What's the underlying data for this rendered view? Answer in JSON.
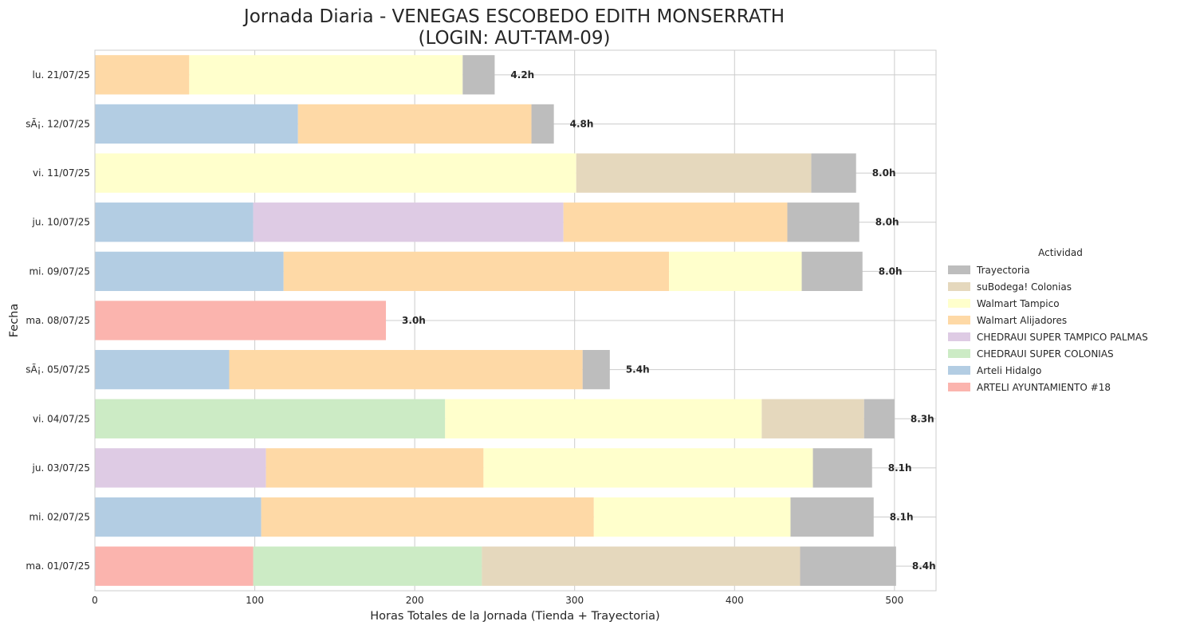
{
  "chart_data": {
    "type": "bar",
    "orientation": "horizontal",
    "stacked": true,
    "title_lines": [
      "Jornada Diaria - VENEGAS ESCOBEDO EDITH MONSERRATH",
      "(LOGIN: AUT-TAM-09)"
    ],
    "xlabel": "Horas Totales de la Jornada (Tienda + Trayectoria)",
    "ylabel": "Fecha",
    "xlim": [
      0,
      526
    ],
    "xticks": [
      0,
      100,
      200,
      300,
      400,
      500
    ],
    "grid": true,
    "legend_title": "Actividad",
    "legend_position": "right",
    "categories": [
      "lu. 21/07/25",
      "sÃ¡. 12/07/25",
      "vi. 11/07/25",
      "ju. 10/07/25",
      "mi. 09/07/25",
      "ma. 08/07/25",
      "sÃ¡. 05/07/25",
      "vi. 04/07/25",
      "ju. 03/07/25",
      "mi. 02/07/25",
      "ma. 01/07/25"
    ],
    "totals_labels": [
      "4.2h",
      "4.8h",
      "8.0h",
      "8.0h",
      "8.0h",
      "3.0h",
      "5.4h",
      "8.3h",
      "8.1h",
      "8.1h",
      "8.4h"
    ],
    "series": [
      {
        "name": "ARTELI AYUNTAMIENTO #18",
        "color": "#fbb4ae",
        "values": [
          0,
          0,
          0,
          0,
          0,
          182,
          0,
          0,
          0,
          0,
          99
        ]
      },
      {
        "name": "Arteli Hidalgo",
        "color": "#b3cde3",
        "values": [
          0,
          127,
          0,
          99,
          118,
          0,
          84,
          0,
          0,
          104,
          0
        ]
      },
      {
        "name": "CHEDRAUI SUPER COLONIAS",
        "color": "#ccebc5",
        "values": [
          0,
          0,
          0,
          0,
          0,
          0,
          0,
          219,
          0,
          0,
          143
        ]
      },
      {
        "name": "CHEDRAUI SUPER TAMPICO PALMAS",
        "color": "#decbe4",
        "values": [
          0,
          0,
          0,
          194,
          0,
          0,
          0,
          0,
          107,
          0,
          0
        ]
      },
      {
        "name": "Walmart Alijadores",
        "color": "#fed9a6",
        "values": [
          59,
          146,
          0,
          140,
          241,
          0,
          221,
          0,
          136,
          208,
          0
        ]
      },
      {
        "name": "Walmart Tampico",
        "color": "#ffffcc",
        "values": [
          171,
          0,
          301,
          0,
          83,
          0,
          0,
          198,
          206,
          123,
          0
        ]
      },
      {
        "name": "suBodega! Colonias",
        "color": "#e5d8bd",
        "values": [
          0,
          0,
          147,
          0,
          0,
          0,
          0,
          64,
          0,
          0,
          199
        ]
      },
      {
        "name": "Trayectoria",
        "color": "#bdbdbd",
        "values": [
          20,
          14,
          28,
          45,
          38,
          0,
          17,
          19,
          37,
          52,
          60
        ]
      }
    ]
  }
}
